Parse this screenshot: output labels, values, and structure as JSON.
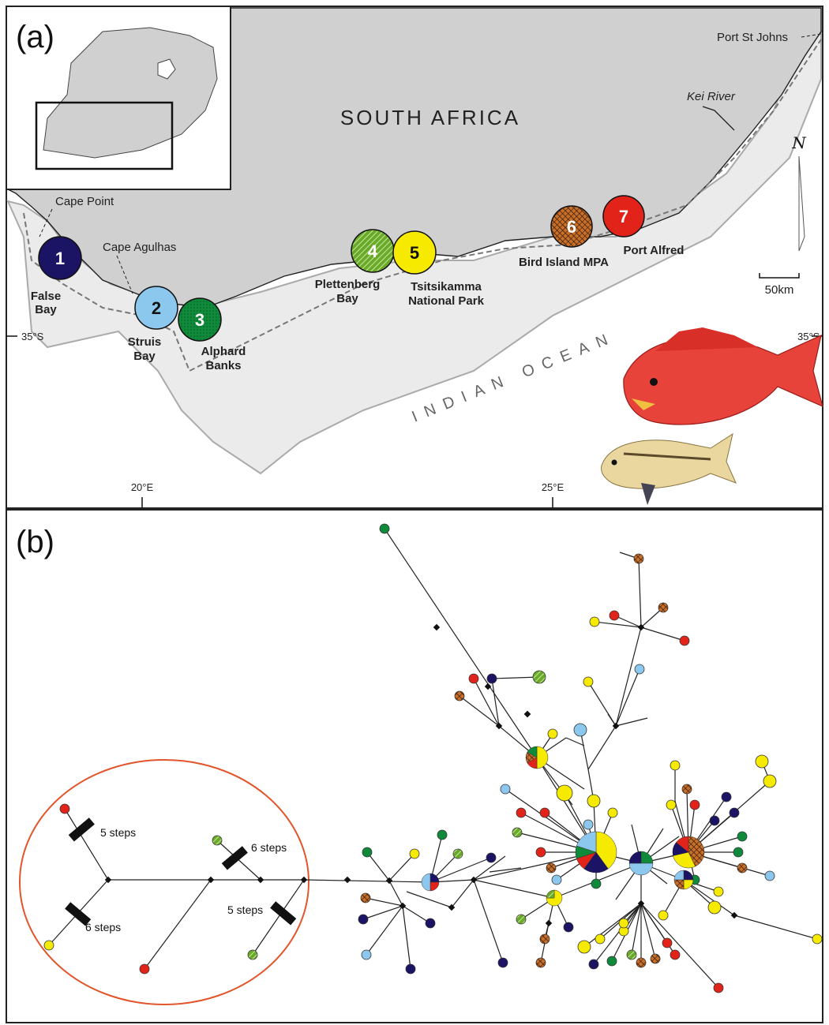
{
  "panel_a": {
    "tag": "(a)",
    "country": "SOUTH AFRICA",
    "ocean": "INDIAN OCEAN",
    "places": {
      "cape_point": "Cape Point",
      "cape_agulhas": "Cape Agulhas",
      "port_st_johns": "Port St Johns",
      "kei_river": "Kei River"
    },
    "sites": [
      {
        "number": "1",
        "name_line1": "False",
        "name_line2": "Bay",
        "color": "#1b1464"
      },
      {
        "number": "2",
        "name_line1": "Struis",
        "name_line2": "Bay",
        "color": "#8cc8ee"
      },
      {
        "number": "3",
        "name_line1": "Alphard",
        "name_line2": "Banks",
        "color": "#0e8a3a"
      },
      {
        "number": "4",
        "name_line1": "Plettenberg",
        "name_line2": "Bay",
        "color": "#6aaa2a"
      },
      {
        "number": "5",
        "name_line1": "Tsitsikamma",
        "name_line2": "National Park",
        "color": "#f5ea00"
      },
      {
        "number": "6",
        "name_line1": "Bird Island MPA",
        "name_line2": "",
        "color": "#c8702a"
      },
      {
        "number": "7",
        "name_line1": "Port Alfred",
        "name_line2": "",
        "color": "#e2231a"
      }
    ],
    "coords": {
      "lat_left": "35°S",
      "lat_right": "35°S",
      "lon_1": "20°E",
      "lon_2": "25°E"
    },
    "north": "N",
    "scale": "50km"
  },
  "panel_b": {
    "tag": "(b)",
    "step_labels": [
      "5 steps",
      "6 steps",
      "6 steps",
      "5 steps"
    ]
  },
  "colors": {
    "land": "#d0d0d0",
    "shelf": "#ebebeb",
    "circle": "#e2552a",
    "edge": "#222222"
  }
}
